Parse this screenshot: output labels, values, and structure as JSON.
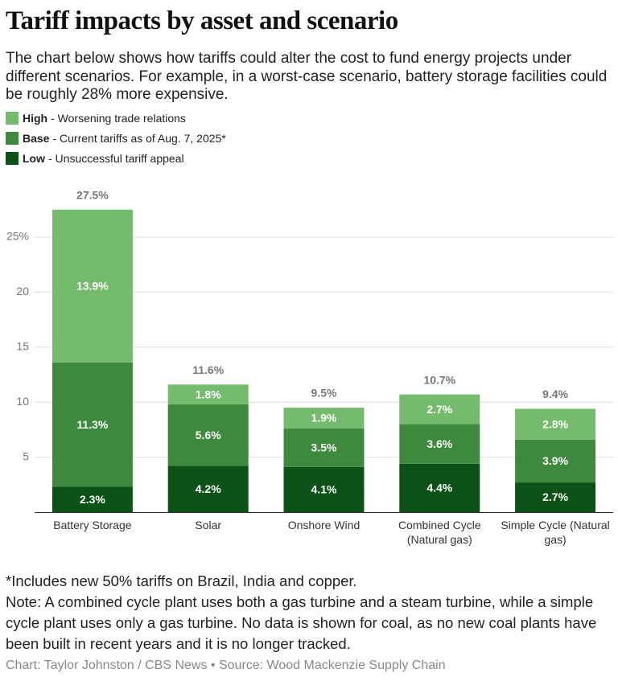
{
  "chart_data": {
    "type": "stacked_bar",
    "title": "Tariff impacts by asset and scenario",
    "subtitle": "The chart below shows how tariffs could alter the cost to fund energy projects under different scenarios. For example, in a worst-case scenario, battery storage facilities could be roughly 28% more expensive.",
    "categories": [
      "Battery Storage",
      "Solar",
      "Onshore Wind",
      "Combined Cycle (Natural gas)",
      "Simple Cycle (Natural gas)"
    ],
    "series": [
      {
        "name": "Low",
        "description": "- Unsuccessful tariff appeal",
        "color": "#0b5217",
        "values": [
          2.3,
          4.2,
          4.1,
          4.4,
          2.7
        ],
        "value_labels": [
          "2.3%",
          "4.2%",
          "4.1%",
          "4.4%",
          "2.7%"
        ]
      },
      {
        "name": "Base",
        "description": "- Current tariffs as of Aug. 7, 2025*",
        "color": "#3d8a3f",
        "values": [
          11.3,
          5.6,
          3.5,
          3.6,
          3.9
        ],
        "value_labels": [
          "11.3%",
          "5.6%",
          "3.5%",
          "3.6%",
          "3.9%"
        ]
      },
      {
        "name": "High",
        "description": "- Worsening trade relations",
        "color": "#74bb6e",
        "values": [
          13.9,
          1.8,
          1.9,
          2.7,
          2.8
        ],
        "value_labels": [
          "13.9%",
          "1.8%",
          "1.9%",
          "2.7%",
          "2.8%"
        ]
      }
    ],
    "totals": [
      27.5,
      11.6,
      9.5,
      10.7,
      9.4
    ],
    "total_labels": [
      "27.5%",
      "11.6%",
      "9.5%",
      "10.7%",
      "9.4%"
    ],
    "ylim": [
      0,
      30
    ],
    "yticks": [
      5,
      10,
      15,
      20,
      {
        "value": 25,
        "label": "25%"
      }
    ],
    "grid": true,
    "footnote": "*Includes new 50% tariffs on Brazil, India and copper.",
    "note": "Note: A combined cycle plant uses both a gas turbine and a steam turbine, while a simple cycle plant uses only a gas turbine. No data is shown for coal, as no new coal plants have been built in recent years and it is no longer tracked.",
    "source": "Chart: Taylor Johnston / CBS News • Source: Wood Mackenzie Supply Chain"
  }
}
